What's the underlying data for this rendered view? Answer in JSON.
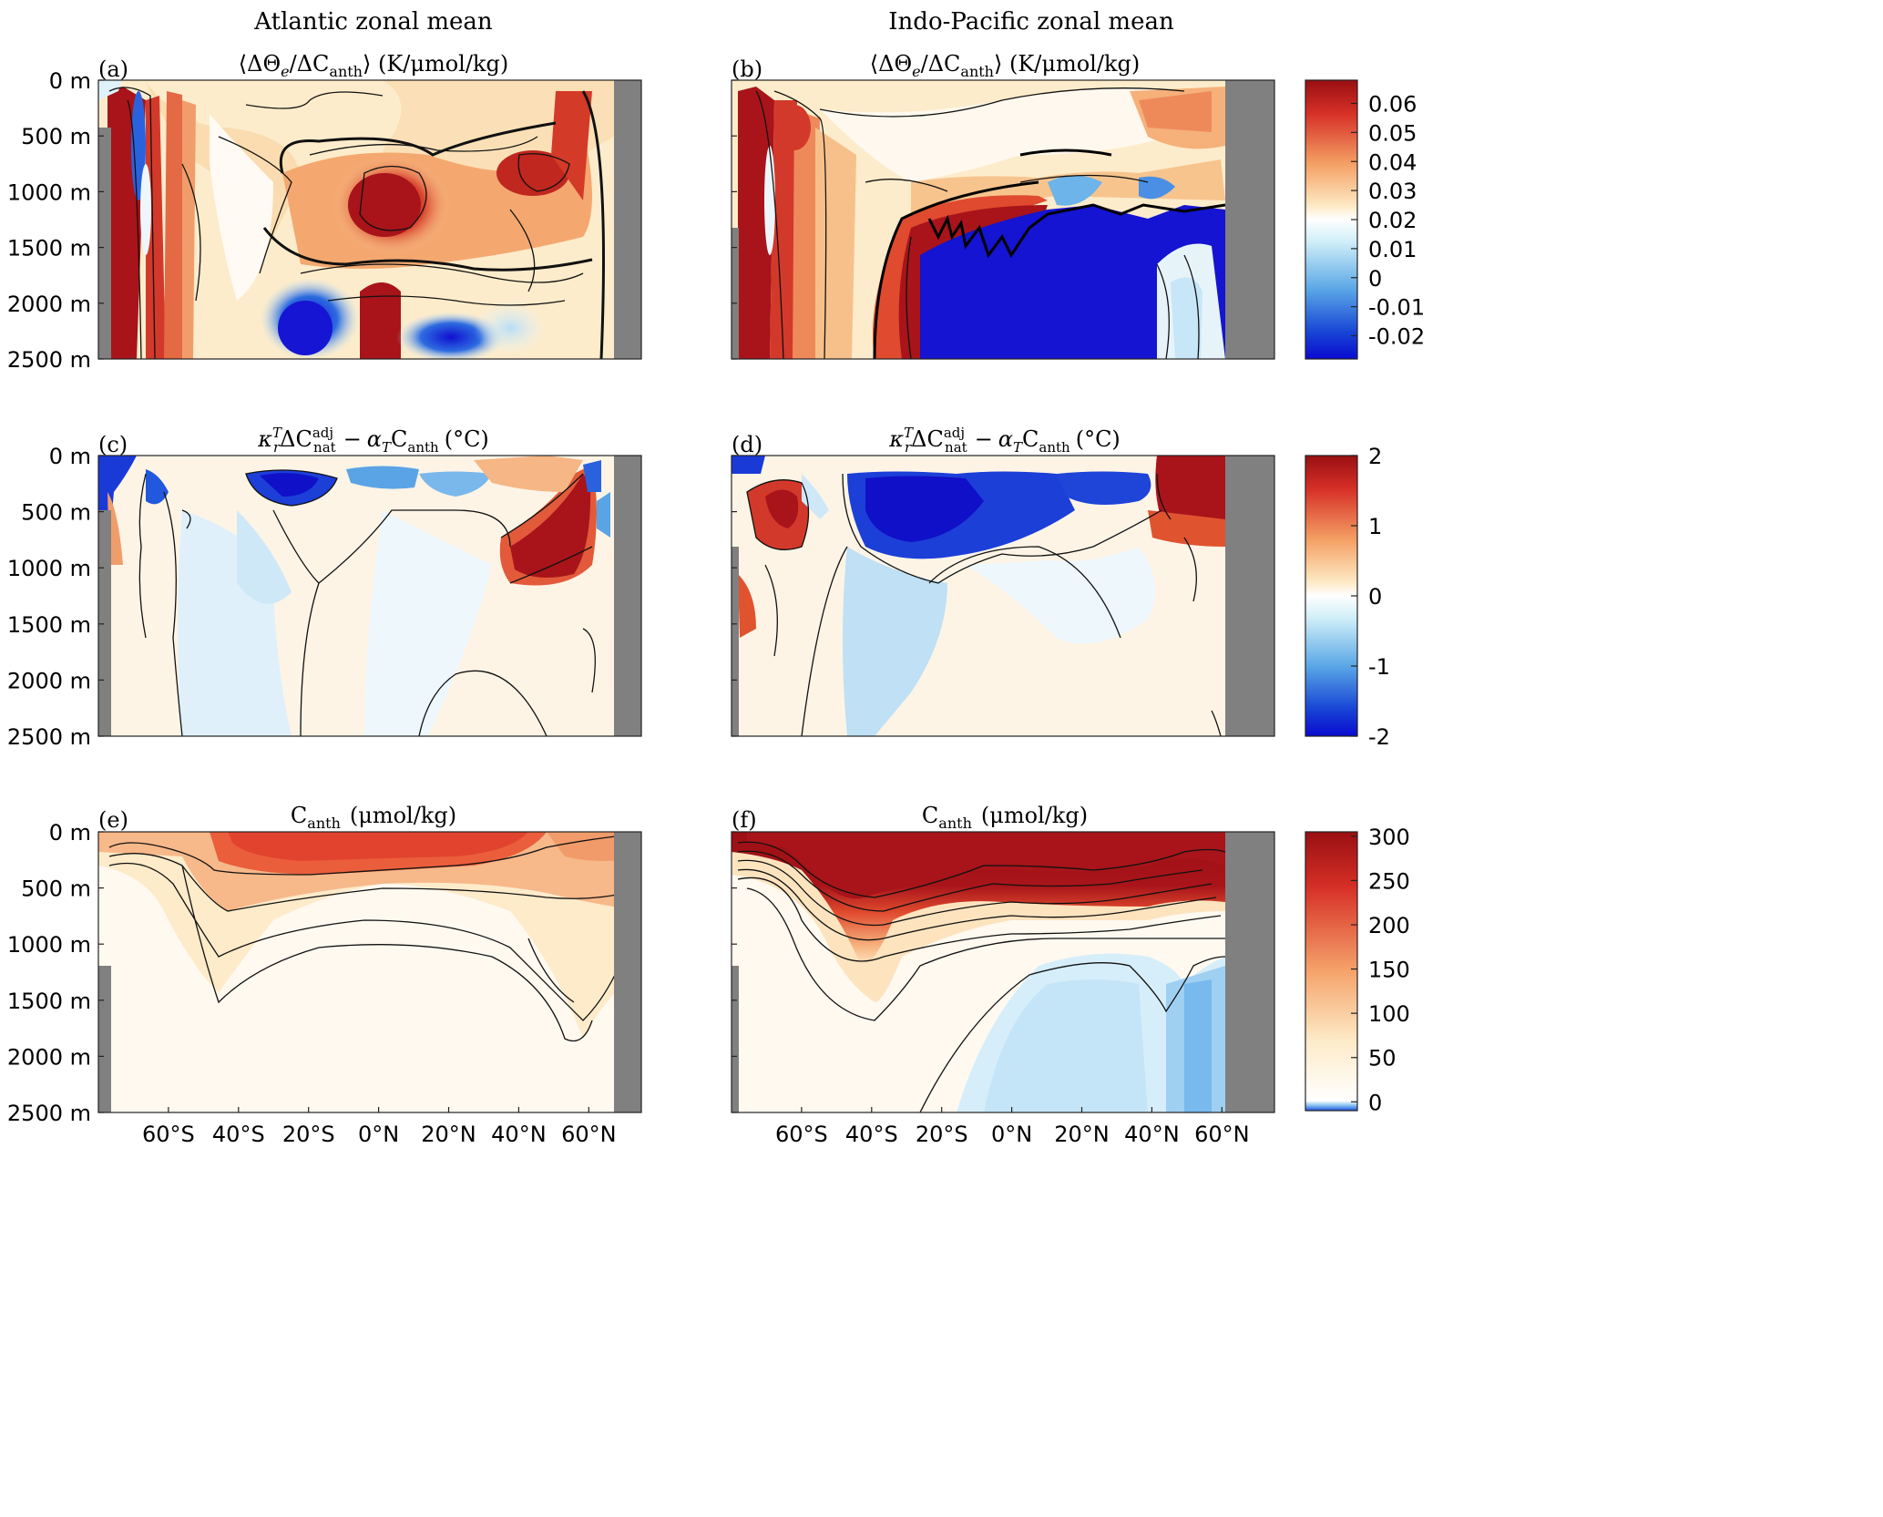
{
  "figure": {
    "column_titles": [
      "Atlantic zonal mean",
      "Indo-Pacific zonal mean"
    ]
  },
  "chart_data": [
    {
      "type": "heatmap",
      "panel": "(a)",
      "basin": "Atlantic",
      "title": "⟨ΔΘe/ΔCanth⟩ (K/μmol/kg)",
      "title_parts": {
        "open": "⟨ΔΘ",
        "sub1": "e",
        "mid": "/ΔC",
        "sub2": "anth",
        "close": "⟩ (K/μmol/kg)"
      },
      "x_range": [
        -80,
        75
      ],
      "y_range": [
        0,
        2500
      ],
      "y_ticks": [
        0,
        500,
        1000,
        1500,
        2000,
        2500
      ],
      "y_tick_labels": [
        "0 m",
        "500 m",
        "1000 m",
        "1500 m",
        "2000 m",
        "2500 m"
      ],
      "colormap": "red-white-blue",
      "clim": [
        -0.028,
        0.068
      ],
      "colorbar": "b"
    },
    {
      "type": "heatmap",
      "panel": "(b)",
      "basin": "Indo-Pacific",
      "title": "⟨ΔΘe/ΔCanth⟩ (K/μmol/kg)",
      "title_parts": {
        "open": "⟨ΔΘ",
        "sub1": "e",
        "mid": "/ΔC",
        "sub2": "anth",
        "close": "⟩ (K/μmol/kg)"
      },
      "x_range": [
        -80,
        75
      ],
      "y_range": [
        0,
        2500
      ],
      "colormap": "red-white-blue",
      "clim": [
        -0.028,
        0.068
      ],
      "colorbar": {
        "ticks": [
          0.06,
          0.05,
          0.04,
          0.03,
          0.02,
          0.01,
          0,
          -0.01,
          -0.02
        ],
        "tick_labels": [
          "0.06",
          "0.05",
          "0.04",
          "0.03",
          "0.02",
          "0.01",
          "0",
          "-0.01",
          "-0.02"
        ],
        "range": [
          -0.028,
          0.068
        ]
      }
    },
    {
      "type": "heatmap",
      "panel": "(c)",
      "basin": "Atlantic",
      "title": "κrTΔCnatadj − αTCanth (°C)",
      "title_parts": {
        "k": "κ",
        "ksup": "T",
        "ksub": "r",
        "d": "ΔC",
        "csup": "adj",
        "csub": "nat",
        "minus": "−",
        "a": "α",
        "asub": "T",
        "c": "C",
        "csub2": "anth",
        "unit": "(°C)"
      },
      "x_range": [
        -80,
        75
      ],
      "y_range": [
        0,
        2500
      ],
      "y_ticks": [
        0,
        500,
        1000,
        1500,
        2000,
        2500
      ],
      "y_tick_labels": [
        "0 m",
        "500 m",
        "1000 m",
        "1500 m",
        "2000 m",
        "2500 m"
      ],
      "colormap": "red-white-blue",
      "clim": [
        -2,
        2
      ]
    },
    {
      "type": "heatmap",
      "panel": "(d)",
      "basin": "Indo-Pacific",
      "title": "κrTΔCnatadj − αTCanth (°C)",
      "title_parts": {
        "k": "κ",
        "ksup": "T",
        "ksub": "r",
        "d": "ΔC",
        "csup": "adj",
        "csub": "nat",
        "minus": "−",
        "a": "α",
        "asub": "T",
        "c": "C",
        "csub2": "anth",
        "unit": "(°C)"
      },
      "x_range": [
        -80,
        75
      ],
      "y_range": [
        0,
        2500
      ],
      "colormap": "red-white-blue",
      "clim": [
        -2,
        2
      ],
      "colorbar": {
        "ticks": [
          2,
          1,
          0,
          -1,
          -2
        ],
        "tick_labels": [
          "2",
          "1",
          "0",
          "-1",
          "-2"
        ],
        "range": [
          -2,
          2
        ]
      }
    },
    {
      "type": "heatmap",
      "panel": "(e)",
      "basin": "Atlantic",
      "title": "Canth (μmol/kg)",
      "title_parts": {
        "c": "C",
        "sub": "anth",
        "unit": "(μmol/kg)"
      },
      "x_range": [
        -80,
        75
      ],
      "y_range": [
        0,
        2500
      ],
      "x_ticks": [
        -60,
        -40,
        -20,
        0,
        20,
        40,
        60
      ],
      "x_tick_labels": [
        "60°S",
        "40°S",
        "20°S",
        "0°N",
        "20°N",
        "40°N",
        "60°N"
      ],
      "y_ticks": [
        0,
        500,
        1000,
        1500,
        2000,
        2500
      ],
      "y_tick_labels": [
        "0 m",
        "500 m",
        "1000 m",
        "1500 m",
        "2000 m",
        "2500 m"
      ],
      "colormap": "red-white-blue",
      "clim": [
        -10,
        305
      ]
    },
    {
      "type": "heatmap",
      "panel": "(f)",
      "basin": "Indo-Pacific",
      "title": "Canth (μmol/kg)",
      "title_parts": {
        "c": "C",
        "sub": "anth",
        "unit": "(μmol/kg)"
      },
      "x_range": [
        -80,
        75
      ],
      "y_range": [
        0,
        2500
      ],
      "x_ticks": [
        -60,
        -40,
        -20,
        0,
        20,
        40,
        60
      ],
      "x_tick_labels": [
        "60°S",
        "40°S",
        "20°S",
        "0°N",
        "20°N",
        "40°N",
        "60°N"
      ],
      "colormap": "red-white-blue",
      "clim": [
        -10,
        305
      ],
      "colorbar": {
        "ticks": [
          300,
          250,
          200,
          150,
          100,
          50,
          0
        ],
        "tick_labels": [
          "300",
          "250",
          "200",
          "150",
          "100",
          "50",
          "0"
        ],
        "range": [
          -10,
          305
        ]
      }
    }
  ]
}
